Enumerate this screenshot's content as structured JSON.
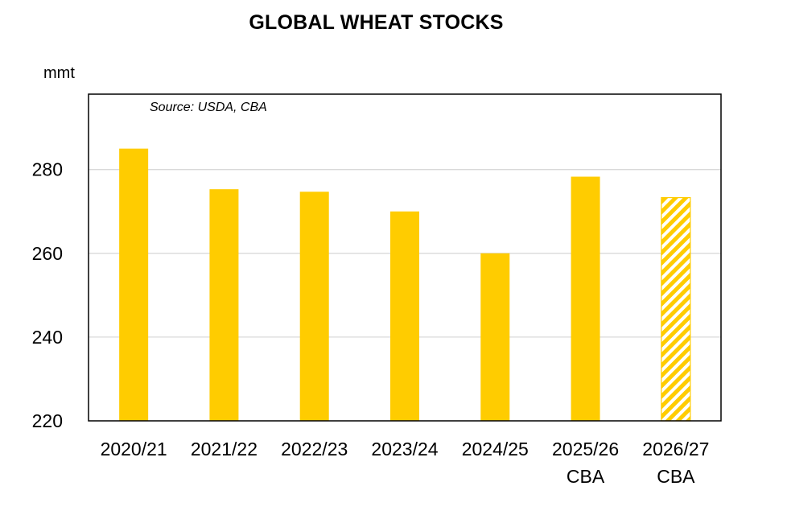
{
  "title": "GLOBAL WHEAT STOCKS",
  "unit_label": "mmt",
  "source_note": "Source: USDA, CBA",
  "colors": {
    "bar": "#ffcc00",
    "forecast_hatch": "#ffcc00",
    "grid": "#d9d9d9",
    "axis": "#000000"
  },
  "chart_data": {
    "type": "bar",
    "title": "GLOBAL WHEAT STOCKS",
    "ylabel": "mmt",
    "ylim": [
      220,
      298
    ],
    "yticks": [
      220,
      240,
      260,
      280
    ],
    "grid": "horizontal",
    "categories": [
      [
        "2020/21"
      ],
      [
        "2021/22"
      ],
      [
        "2022/23"
      ],
      [
        "2023/24"
      ],
      [
        "2024/25"
      ],
      [
        "2025/26",
        "CBA"
      ],
      [
        "2026/27",
        "CBA"
      ]
    ],
    "values": [
      285,
      275.3,
      274.7,
      270,
      260,
      278.3,
      273.3
    ],
    "styles": [
      "solid",
      "solid",
      "solid",
      "solid",
      "solid",
      "solid",
      "hatched"
    ]
  }
}
